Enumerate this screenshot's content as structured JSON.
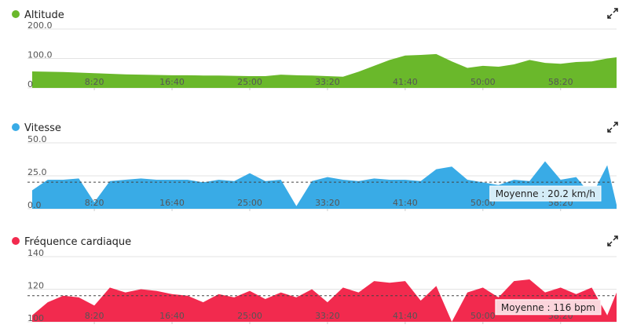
{
  "chart_data": [
    {
      "type": "area",
      "title": "Altitude",
      "color": "#6ab82b",
      "x": [
        100,
        200,
        300,
        400,
        500,
        600,
        700,
        800,
        900,
        1000,
        1100,
        1200,
        1300,
        1400,
        1500,
        1600,
        1700,
        1800,
        1900,
        2000,
        2100,
        2200,
        2300,
        2400,
        2500,
        2600,
        2700,
        2800,
        2900,
        3000,
        3100,
        3200,
        3300,
        3400,
        3500,
        3600,
        3700,
        3800,
        3860
      ],
      "values": [
        56,
        55,
        54,
        52,
        50,
        48,
        46,
        45,
        44,
        43,
        43,
        42,
        42,
        41,
        40,
        40,
        45,
        43,
        42,
        40,
        38,
        55,
        75,
        95,
        110,
        112,
        115,
        90,
        68,
        75,
        72,
        80,
        95,
        85,
        82,
        88,
        90,
        100,
        104
      ],
      "xlim": [
        70,
        3860
      ],
      "ylim": [
        0,
        200
      ],
      "yticks": [
        {
          "value": 0,
          "label": "0"
        },
        {
          "value": 100,
          "label": "100.0"
        },
        {
          "value": 200,
          "label": "200.0"
        }
      ],
      "xticks": [
        {
          "value": 500,
          "label": "8:20"
        },
        {
          "value": 1000,
          "label": "16:40"
        },
        {
          "value": 1500,
          "label": "25:00"
        },
        {
          "value": 2000,
          "label": "33:20"
        },
        {
          "value": 2500,
          "label": "41:40"
        },
        {
          "value": 3000,
          "label": "50:00"
        },
        {
          "value": 3500,
          "label": "58:20"
        }
      ],
      "grid": true
    },
    {
      "type": "area",
      "title": "Vitesse",
      "color": "#39abe6",
      "x": [
        100,
        200,
        300,
        400,
        500,
        600,
        700,
        800,
        900,
        1000,
        1100,
        1200,
        1300,
        1400,
        1500,
        1600,
        1700,
        1800,
        1900,
        2000,
        2100,
        2200,
        2300,
        2400,
        2500,
        2600,
        2700,
        2800,
        2900,
        3000,
        3100,
        3200,
        3300,
        3400,
        3500,
        3600,
        3700,
        3800,
        3860
      ],
      "values": [
        14,
        22,
        22,
        23,
        5,
        21,
        22,
        23,
        22,
        22,
        22,
        20,
        22,
        21,
        27,
        21,
        22,
        2,
        21,
        24,
        22,
        21,
        23,
        22,
        22,
        21,
        30,
        32,
        22,
        20,
        18,
        22,
        21,
        36,
        22,
        24,
        10,
        33,
        3
      ],
      "xlim": [
        70,
        3860
      ],
      "ylim": [
        0,
        50
      ],
      "yticks": [
        {
          "value": 0,
          "label": "0.0"
        },
        {
          "value": 25,
          "label": "25.0"
        },
        {
          "value": 50,
          "label": "50.0"
        }
      ],
      "xticks": [
        {
          "value": 500,
          "label": "8:20"
        },
        {
          "value": 1000,
          "label": "16:40"
        },
        {
          "value": 1500,
          "label": "25:00"
        },
        {
          "value": 2000,
          "label": "33:20"
        },
        {
          "value": 2500,
          "label": "41:40"
        },
        {
          "value": 3000,
          "label": "50:00"
        },
        {
          "value": 3500,
          "label": "58:20"
        }
      ],
      "grid": true,
      "average": 20.2,
      "annotation": "Moyenne : 20.2 km/h"
    },
    {
      "type": "area",
      "title": "Fréquence cardiaque",
      "color": "#f22a4e",
      "x": [
        100,
        200,
        300,
        400,
        500,
        600,
        700,
        800,
        900,
        1000,
        1100,
        1200,
        1300,
        1400,
        1500,
        1600,
        1700,
        1800,
        1900,
        2000,
        2100,
        2200,
        2300,
        2400,
        2500,
        2600,
        2700,
        2800,
        2900,
        3000,
        3100,
        3200,
        3300,
        3400,
        3500,
        3600,
        3700,
        3800,
        3860
      ],
      "values": [
        104,
        112,
        116,
        115,
        110,
        121,
        118,
        120,
        119,
        117,
        116,
        112,
        117,
        115,
        119,
        114,
        118,
        115,
        120,
        112,
        121,
        118,
        125,
        124,
        125,
        113,
        122,
        100,
        118,
        121,
        115,
        125,
        126,
        118,
        121,
        117,
        121,
        104,
        118
      ],
      "xlim": [
        70,
        3860
      ],
      "ylim": [
        100,
        140
      ],
      "yticks": [
        100,
        120,
        140
      ],
      "xticks": [
        {
          "value": 500,
          "label": "8:20"
        },
        {
          "value": 1000,
          "label": "16:40"
        },
        {
          "value": 1500,
          "label": "25:00"
        },
        {
          "value": 2000,
          "label": "33:20"
        },
        {
          "value": 2500,
          "label": "41:40"
        },
        {
          "value": 3000,
          "label": "50:00"
        },
        {
          "value": 3500,
          "label": "58:20"
        }
      ],
      "grid": true,
      "average": 116,
      "annotation": "Moyenne : 116 bpm"
    }
  ]
}
